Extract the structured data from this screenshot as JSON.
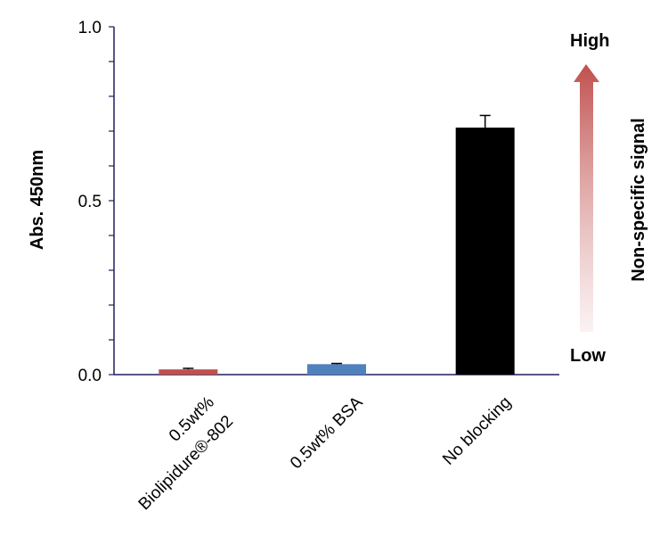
{
  "chart_data": {
    "type": "bar",
    "title": "",
    "ylabel": "Abs. 450nm",
    "xlabel": "",
    "ylim": [
      0,
      1.0
    ],
    "yticks": [
      "0.0",
      "0.5",
      "1.0"
    ],
    "ytick_values": [
      0,
      0.5,
      1.0
    ],
    "categories": [
      [
        "0.5wt%",
        "Biolipidure®-802"
      ],
      [
        "0.5wt% BSA"
      ],
      [
        "No blocking"
      ]
    ],
    "values": [
      0.015,
      0.03,
      0.71
    ],
    "errors": [
      0.003,
      0.002,
      0.035
    ],
    "colors": [
      "#c0504d",
      "#4f81bd",
      "#000000"
    ],
    "grid": false,
    "legend": "none"
  },
  "indicator": {
    "high_label": "High",
    "low_label": "Low",
    "axis_label": "Non-specific signal",
    "color_high": "#c0504d",
    "color_low": "#f7e9ea"
  }
}
